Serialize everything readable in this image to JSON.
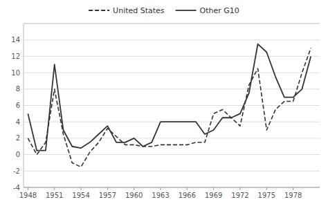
{
  "chart_data": {
    "type": "line",
    "x": [
      1948,
      1949,
      1950,
      1951,
      1952,
      1953,
      1954,
      1955,
      1956,
      1957,
      1958,
      1959,
      1960,
      1961,
      1962,
      1963,
      1964,
      1965,
      1966,
      1967,
      1968,
      1969,
      1970,
      1971,
      1972,
      1973,
      1974,
      1975,
      1976,
      1977,
      1978,
      1979,
      1980
    ],
    "series": [
      {
        "name": "United States",
        "color": "#333333",
        "line_style": "dashed",
        "values": [
          2.0,
          0.0,
          1.5,
          8.0,
          2.5,
          -1.0,
          -1.5,
          0.3,
          1.5,
          3.2,
          2.2,
          1.2,
          1.2,
          1.0,
          1.0,
          1.2,
          1.2,
          1.2,
          1.2,
          1.5,
          1.5,
          5.0,
          5.5,
          4.5,
          3.5,
          8.5,
          10.5,
          3.0,
          5.5,
          6.5,
          6.5,
          10.0,
          13.0
        ]
      },
      {
        "name": "Other G10",
        "color": "#333333",
        "line_style": "solid",
        "values": [
          5.0,
          0.5,
          0.5,
          11.0,
          3.0,
          1.0,
          0.8,
          1.5,
          2.5,
          3.5,
          1.5,
          1.5,
          2.0,
          1.0,
          1.5,
          4.0,
          4.0,
          4.0,
          4.0,
          4.0,
          2.5,
          3.0,
          4.5,
          4.5,
          5.0,
          7.5,
          13.5,
          12.5,
          9.5,
          7.0,
          7.0,
          8.0,
          12.0
        ]
      }
    ],
    "xlim": [
      1947.5,
      1981.0
    ],
    "xticks": [
      1948,
      1951,
      1954,
      1957,
      1960,
      1963,
      1966,
      1969,
      1972,
      1975,
      1978
    ],
    "ylim": [
      -4,
      16
    ],
    "yticks": [
      -4,
      -2,
      0,
      2,
      4,
      6,
      8,
      10,
      12,
      14
    ],
    "grid": true,
    "legend": "top"
  }
}
